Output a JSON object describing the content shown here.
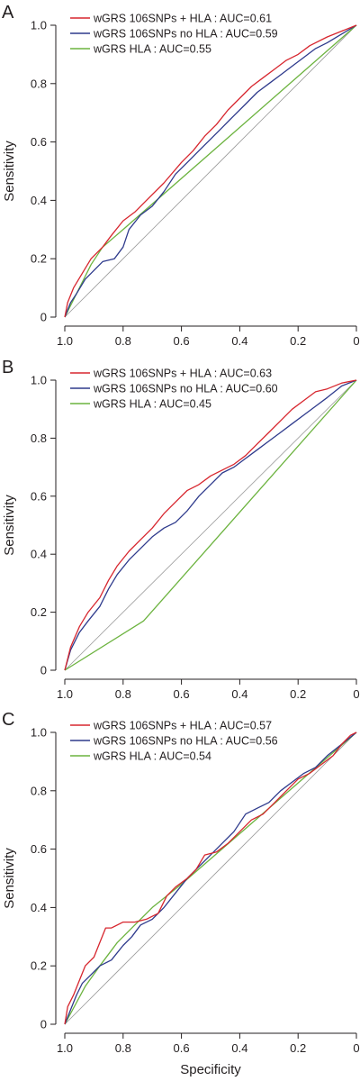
{
  "colors": {
    "red": "#d7262e",
    "blue": "#2e3a8c",
    "green": "#6cb33f",
    "diagonal": "#9a9a9a",
    "axis": "#231f20"
  },
  "chart_data": [
    {
      "panel_label": "A",
      "type": "line",
      "xlabel": "",
      "ylabel": "Sensitivity",
      "xlim": [
        1.0,
        0.0
      ],
      "ylim": [
        0,
        1.0
      ],
      "x_ticks": [
        "1.0",
        "0.8",
        "0.6",
        "0.4",
        "0.2",
        "0"
      ],
      "y_ticks": [
        "0",
        "0.2",
        "0.4",
        "0.6",
        "0.8",
        "1.0"
      ],
      "legend_position": "top-left",
      "series": [
        {
          "name": "wGRS 106SNPs + HLA : AUC=0.61",
          "color": "red",
          "points": [
            [
              1,
              0
            ],
            [
              0.99,
              0.05
            ],
            [
              0.97,
              0.1
            ],
            [
              0.94,
              0.15
            ],
            [
              0.91,
              0.2
            ],
            [
              0.87,
              0.24
            ],
            [
              0.84,
              0.28
            ],
            [
              0.8,
              0.33
            ],
            [
              0.76,
              0.36
            ],
            [
              0.72,
              0.4
            ],
            [
              0.66,
              0.46
            ],
            [
              0.6,
              0.53
            ],
            [
              0.56,
              0.57
            ],
            [
              0.52,
              0.62
            ],
            [
              0.48,
              0.66
            ],
            [
              0.44,
              0.71
            ],
            [
              0.4,
              0.75
            ],
            [
              0.36,
              0.79
            ],
            [
              0.32,
              0.82
            ],
            [
              0.28,
              0.85
            ],
            [
              0.24,
              0.88
            ],
            [
              0.2,
              0.9
            ],
            [
              0.16,
              0.93
            ],
            [
              0.1,
              0.96
            ],
            [
              0.05,
              0.98
            ],
            [
              0,
              1
            ]
          ]
        },
        {
          "name": "wGRS 106SNPs no HLA : AUC=0.59",
          "color": "blue",
          "points": [
            [
              1,
              0
            ],
            [
              0.98,
              0.05
            ],
            [
              0.96,
              0.08
            ],
            [
              0.93,
              0.13
            ],
            [
              0.9,
              0.16
            ],
            [
              0.87,
              0.19
            ],
            [
              0.83,
              0.2
            ],
            [
              0.8,
              0.24
            ],
            [
              0.78,
              0.3
            ],
            [
              0.74,
              0.35
            ],
            [
              0.7,
              0.38
            ],
            [
              0.66,
              0.43
            ],
            [
              0.62,
              0.49
            ],
            [
              0.58,
              0.53
            ],
            [
              0.54,
              0.57
            ],
            [
              0.5,
              0.61
            ],
            [
              0.46,
              0.65
            ],
            [
              0.42,
              0.69
            ],
            [
              0.38,
              0.73
            ],
            [
              0.34,
              0.77
            ],
            [
              0.3,
              0.8
            ],
            [
              0.26,
              0.83
            ],
            [
              0.22,
              0.86
            ],
            [
              0.18,
              0.89
            ],
            [
              0.14,
              0.92
            ],
            [
              0.1,
              0.94
            ],
            [
              0.05,
              0.97
            ],
            [
              0,
              1
            ]
          ]
        },
        {
          "name": "wGRS HLA : AUC=0.55",
          "color": "green",
          "points": [
            [
              1,
              0
            ],
            [
              0.91,
              0.18
            ],
            [
              0.87,
              0.24
            ],
            [
              0.8,
              0.3
            ],
            [
              0,
              1
            ]
          ]
        }
      ]
    },
    {
      "panel_label": "B",
      "type": "line",
      "xlabel": "",
      "ylabel": "Sensitivity",
      "xlim": [
        1.0,
        0.0
      ],
      "ylim": [
        0,
        1.0
      ],
      "x_ticks": [
        "1.0",
        "0.8",
        "0.6",
        "0.4",
        "0.2",
        "0"
      ],
      "y_ticks": [
        "0",
        "0.2",
        "0.4",
        "0.6",
        "0.8",
        "1.0"
      ],
      "legend_position": "top-left",
      "series": [
        {
          "name": "wGRS 106SNPs + HLA : AUC=0.63",
          "color": "red",
          "points": [
            [
              1,
              0
            ],
            [
              0.98,
              0.08
            ],
            [
              0.95,
              0.15
            ],
            [
              0.92,
              0.2
            ],
            [
              0.88,
              0.25
            ],
            [
              0.85,
              0.31
            ],
            [
              0.82,
              0.36
            ],
            [
              0.78,
              0.41
            ],
            [
              0.74,
              0.45
            ],
            [
              0.7,
              0.49
            ],
            [
              0.66,
              0.54
            ],
            [
              0.62,
              0.58
            ],
            [
              0.58,
              0.62
            ],
            [
              0.54,
              0.64
            ],
            [
              0.5,
              0.67
            ],
            [
              0.46,
              0.69
            ],
            [
              0.42,
              0.71
            ],
            [
              0.38,
              0.74
            ],
            [
              0.34,
              0.78
            ],
            [
              0.3,
              0.82
            ],
            [
              0.26,
              0.86
            ],
            [
              0.22,
              0.9
            ],
            [
              0.18,
              0.93
            ],
            [
              0.14,
              0.96
            ],
            [
              0.1,
              0.97
            ],
            [
              0.05,
              0.99
            ],
            [
              0,
              1
            ]
          ]
        },
        {
          "name": "wGRS 106SNPs no HLA : AUC=0.60",
          "color": "blue",
          "points": [
            [
              1,
              0
            ],
            [
              0.98,
              0.07
            ],
            [
              0.95,
              0.13
            ],
            [
              0.92,
              0.17
            ],
            [
              0.88,
              0.22
            ],
            [
              0.85,
              0.28
            ],
            [
              0.82,
              0.33
            ],
            [
              0.78,
              0.38
            ],
            [
              0.74,
              0.42
            ],
            [
              0.7,
              0.46
            ],
            [
              0.66,
              0.49
            ],
            [
              0.62,
              0.51
            ],
            [
              0.58,
              0.55
            ],
            [
              0.54,
              0.6
            ],
            [
              0.5,
              0.64
            ],
            [
              0.46,
              0.68
            ],
            [
              0.42,
              0.7
            ],
            [
              0.38,
              0.73
            ],
            [
              0.34,
              0.76
            ],
            [
              0.3,
              0.79
            ],
            [
              0.26,
              0.82
            ],
            [
              0.22,
              0.85
            ],
            [
              0.18,
              0.88
            ],
            [
              0.14,
              0.91
            ],
            [
              0.1,
              0.94
            ],
            [
              0.05,
              0.98
            ],
            [
              0,
              1
            ]
          ]
        },
        {
          "name": "wGRS HLA : AUC=0.45",
          "color": "green",
          "points": [
            [
              1,
              0
            ],
            [
              0.73,
              0.17
            ],
            [
              0,
              1
            ]
          ]
        }
      ]
    },
    {
      "panel_label": "C",
      "type": "line",
      "xlabel": "Specificity",
      "ylabel": "Sensitivity",
      "xlim": [
        1.0,
        0.0
      ],
      "ylim": [
        0,
        1.0
      ],
      "x_ticks": [
        "1.0",
        "0.8",
        "0.6",
        "0.4",
        "0.2",
        "0"
      ],
      "y_ticks": [
        "0",
        "0.2",
        "0.4",
        "0.6",
        "0.8",
        "1.0"
      ],
      "legend_position": "top-left",
      "series": [
        {
          "name": "wGRS 106SNPs + HLA : AUC=0.57",
          "color": "red",
          "points": [
            [
              1,
              0
            ],
            [
              0.99,
              0.06
            ],
            [
              0.97,
              0.1
            ],
            [
              0.95,
              0.15
            ],
            [
              0.93,
              0.2
            ],
            [
              0.9,
              0.23
            ],
            [
              0.88,
              0.28
            ],
            [
              0.86,
              0.33
            ],
            [
              0.84,
              0.33
            ],
            [
              0.8,
              0.35
            ],
            [
              0.76,
              0.35
            ],
            [
              0.72,
              0.36
            ],
            [
              0.68,
              0.38
            ],
            [
              0.65,
              0.44
            ],
            [
              0.62,
              0.47
            ],
            [
              0.58,
              0.5
            ],
            [
              0.55,
              0.53
            ],
            [
              0.52,
              0.58
            ],
            [
              0.48,
              0.59
            ],
            [
              0.44,
              0.62
            ],
            [
              0.4,
              0.66
            ],
            [
              0.36,
              0.7
            ],
            [
              0.32,
              0.72
            ],
            [
              0.28,
              0.76
            ],
            [
              0.24,
              0.8
            ],
            [
              0.2,
              0.84
            ],
            [
              0.16,
              0.86
            ],
            [
              0.12,
              0.89
            ],
            [
              0.08,
              0.92
            ],
            [
              0.05,
              0.96
            ],
            [
              0.02,
              0.99
            ],
            [
              0,
              1
            ]
          ]
        },
        {
          "name": "wGRS 106SNPs no HLA : AUC=0.56",
          "color": "blue",
          "points": [
            [
              1,
              0
            ],
            [
              0.98,
              0.05
            ],
            [
              0.96,
              0.1
            ],
            [
              0.94,
              0.14
            ],
            [
              0.91,
              0.17
            ],
            [
              0.88,
              0.2
            ],
            [
              0.84,
              0.22
            ],
            [
              0.8,
              0.27
            ],
            [
              0.77,
              0.3
            ],
            [
              0.74,
              0.34
            ],
            [
              0.7,
              0.36
            ],
            [
              0.66,
              0.4
            ],
            [
              0.62,
              0.45
            ],
            [
              0.58,
              0.5
            ],
            [
              0.54,
              0.54
            ],
            [
              0.5,
              0.58
            ],
            [
              0.46,
              0.62
            ],
            [
              0.42,
              0.66
            ],
            [
              0.38,
              0.72
            ],
            [
              0.34,
              0.74
            ],
            [
              0.3,
              0.76
            ],
            [
              0.26,
              0.8
            ],
            [
              0.22,
              0.83
            ],
            [
              0.18,
              0.86
            ],
            [
              0.14,
              0.88
            ],
            [
              0.1,
              0.92
            ],
            [
              0.05,
              0.96
            ],
            [
              0,
              1
            ]
          ]
        },
        {
          "name": "wGRS HLA : AUC=0.54",
          "color": "green",
          "points": [
            [
              1,
              0
            ],
            [
              0.93,
              0.13
            ],
            [
              0.88,
              0.2
            ],
            [
              0.82,
              0.28
            ],
            [
              0.76,
              0.34
            ],
            [
              0.7,
              0.4
            ],
            [
              0.6,
              0.48
            ],
            [
              0,
              1
            ]
          ]
        }
      ]
    }
  ]
}
